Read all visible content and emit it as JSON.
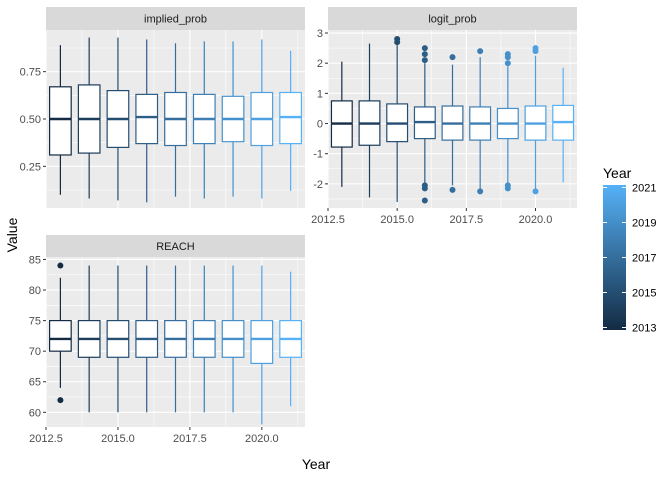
{
  "chart_data": {
    "type": "box",
    "facet_layout": "wrap-2-columns",
    "free_y_scales": true,
    "grid": true,
    "xlabel": "Year",
    "ylabel": "Value",
    "xlim": [
      2012.5,
      2021.5
    ],
    "x_ticks": [
      2012.5,
      2015.0,
      2017.5,
      2020.0
    ],
    "x_tick_labels": [
      "2012.5",
      "2015.0",
      "2017.5",
      "2020.0"
    ],
    "color_scale": {
      "low": "#132B43",
      "high": "#56B1F7"
    },
    "legend": {
      "title": "Year",
      "position": "right",
      "range": [
        2013,
        2021
      ],
      "breaks": [
        2013,
        2015,
        2017,
        2019,
        2021
      ],
      "labels": [
        "2013",
        "2015",
        "2017",
        "2019",
        "2021"
      ]
    },
    "panels": [
      {
        "title": "implied_prob",
        "ylim": [
          0.03,
          0.97
        ],
        "y_ticks": [
          0.25,
          0.5,
          0.75
        ],
        "y_tick_labels": [
          "0.25",
          "0.50",
          "0.75"
        ],
        "boxes": [
          {
            "year": 2013,
            "low": 0.1,
            "q1": 0.31,
            "median": 0.5,
            "q3": 0.67,
            "high": 0.89,
            "outliers": []
          },
          {
            "year": 2014,
            "low": 0.08,
            "q1": 0.32,
            "median": 0.5,
            "q3": 0.68,
            "high": 0.93,
            "outliers": []
          },
          {
            "year": 2015,
            "low": 0.07,
            "q1": 0.35,
            "median": 0.5,
            "q3": 0.65,
            "high": 0.93,
            "outliers": []
          },
          {
            "year": 2016,
            "low": 0.06,
            "q1": 0.37,
            "median": 0.51,
            "q3": 0.63,
            "high": 0.92,
            "outliers": []
          },
          {
            "year": 2017,
            "low": 0.09,
            "q1": 0.36,
            "median": 0.5,
            "q3": 0.64,
            "high": 0.9,
            "outliers": []
          },
          {
            "year": 2018,
            "low": 0.08,
            "q1": 0.37,
            "median": 0.5,
            "q3": 0.63,
            "high": 0.91,
            "outliers": []
          },
          {
            "year": 2019,
            "low": 0.09,
            "q1": 0.38,
            "median": 0.5,
            "q3": 0.62,
            "high": 0.91,
            "outliers": []
          },
          {
            "year": 2020,
            "low": 0.08,
            "q1": 0.36,
            "median": 0.5,
            "q3": 0.64,
            "high": 0.92,
            "outliers": []
          },
          {
            "year": 2021,
            "low": 0.12,
            "q1": 0.37,
            "median": 0.51,
            "q3": 0.64,
            "high": 0.86,
            "outliers": []
          }
        ]
      },
      {
        "title": "logit_prob",
        "ylim": [
          -2.8,
          3.1
        ],
        "y_ticks": [
          -2,
          -1,
          0,
          1,
          2,
          3
        ],
        "y_tick_labels": [
          "-2",
          "-1",
          "0",
          "1",
          "2",
          "3"
        ],
        "boxes": [
          {
            "year": 2013,
            "low": -2.1,
            "q1": -0.78,
            "median": 0.0,
            "q3": 0.75,
            "high": 2.05,
            "outliers": []
          },
          {
            "year": 2014,
            "low": -2.45,
            "q1": -0.72,
            "median": 0.0,
            "q3": 0.75,
            "high": 2.65,
            "outliers": []
          },
          {
            "year": 2015,
            "low": -2.6,
            "q1": -0.6,
            "median": 0.0,
            "q3": 0.65,
            "high": 2.6,
            "outliers": [
              2.7,
              2.8
            ]
          },
          {
            "year": 2016,
            "low": -2.0,
            "q1": -0.5,
            "median": 0.05,
            "q3": 0.55,
            "high": 2.0,
            "outliers": [
              2.1,
              2.3,
              2.5,
              -2.05,
              -2.15,
              -2.55
            ]
          },
          {
            "year": 2017,
            "low": -2.05,
            "q1": -0.55,
            "median": 0.0,
            "q3": 0.58,
            "high": 1.95,
            "outliers": [
              2.2,
              -2.2
            ]
          },
          {
            "year": 2018,
            "low": -2.2,
            "q1": -0.55,
            "median": 0.0,
            "q3": 0.55,
            "high": 2.2,
            "outliers": [
              2.4,
              -2.25
            ]
          },
          {
            "year": 2019,
            "low": -2.0,
            "q1": -0.5,
            "median": 0.0,
            "q3": 0.5,
            "high": 1.9,
            "outliers": [
              2.0,
              2.2,
              2.3,
              -2.05,
              -2.15
            ]
          },
          {
            "year": 2020,
            "low": -2.2,
            "q1": -0.55,
            "median": 0.0,
            "q3": 0.58,
            "high": 2.25,
            "outliers": [
              2.4,
              2.5,
              -2.25
            ]
          },
          {
            "year": 2021,
            "low": -1.95,
            "q1": -0.55,
            "median": 0.05,
            "q3": 0.6,
            "high": 1.85,
            "outliers": []
          }
        ]
      },
      {
        "title": "REACH",
        "ylim": [
          57.6,
          85.4
        ],
        "y_ticks": [
          60,
          65,
          70,
          75,
          80,
          85
        ],
        "y_tick_labels": [
          "60",
          "65",
          "70",
          "75",
          "80",
          "85"
        ],
        "boxes": [
          {
            "year": 2013,
            "low": 64,
            "q1": 70,
            "median": 72,
            "q3": 75,
            "high": 82,
            "outliers": [
              84,
              62
            ]
          },
          {
            "year": 2014,
            "low": 60,
            "q1": 69,
            "median": 72,
            "q3": 75,
            "high": 84,
            "outliers": []
          },
          {
            "year": 2015,
            "low": 60,
            "q1": 69,
            "median": 72,
            "q3": 75,
            "high": 84,
            "outliers": []
          },
          {
            "year": 2016,
            "low": 60,
            "q1": 69,
            "median": 72,
            "q3": 75,
            "high": 84,
            "outliers": []
          },
          {
            "year": 2017,
            "low": 60,
            "q1": 69,
            "median": 72,
            "q3": 75,
            "high": 84,
            "outliers": []
          },
          {
            "year": 2018,
            "low": 60,
            "q1": 69,
            "median": 72,
            "q3": 75,
            "high": 84,
            "outliers": []
          },
          {
            "year": 2019,
            "low": 60,
            "q1": 69,
            "median": 72,
            "q3": 75,
            "high": 84,
            "outliers": []
          },
          {
            "year": 2020,
            "low": 58,
            "q1": 68,
            "median": 72,
            "q3": 75,
            "high": 84,
            "outliers": []
          },
          {
            "year": 2021,
            "low": 61,
            "q1": 69,
            "median": 72,
            "q3": 75,
            "high": 83,
            "outliers": []
          }
        ]
      }
    ]
  }
}
